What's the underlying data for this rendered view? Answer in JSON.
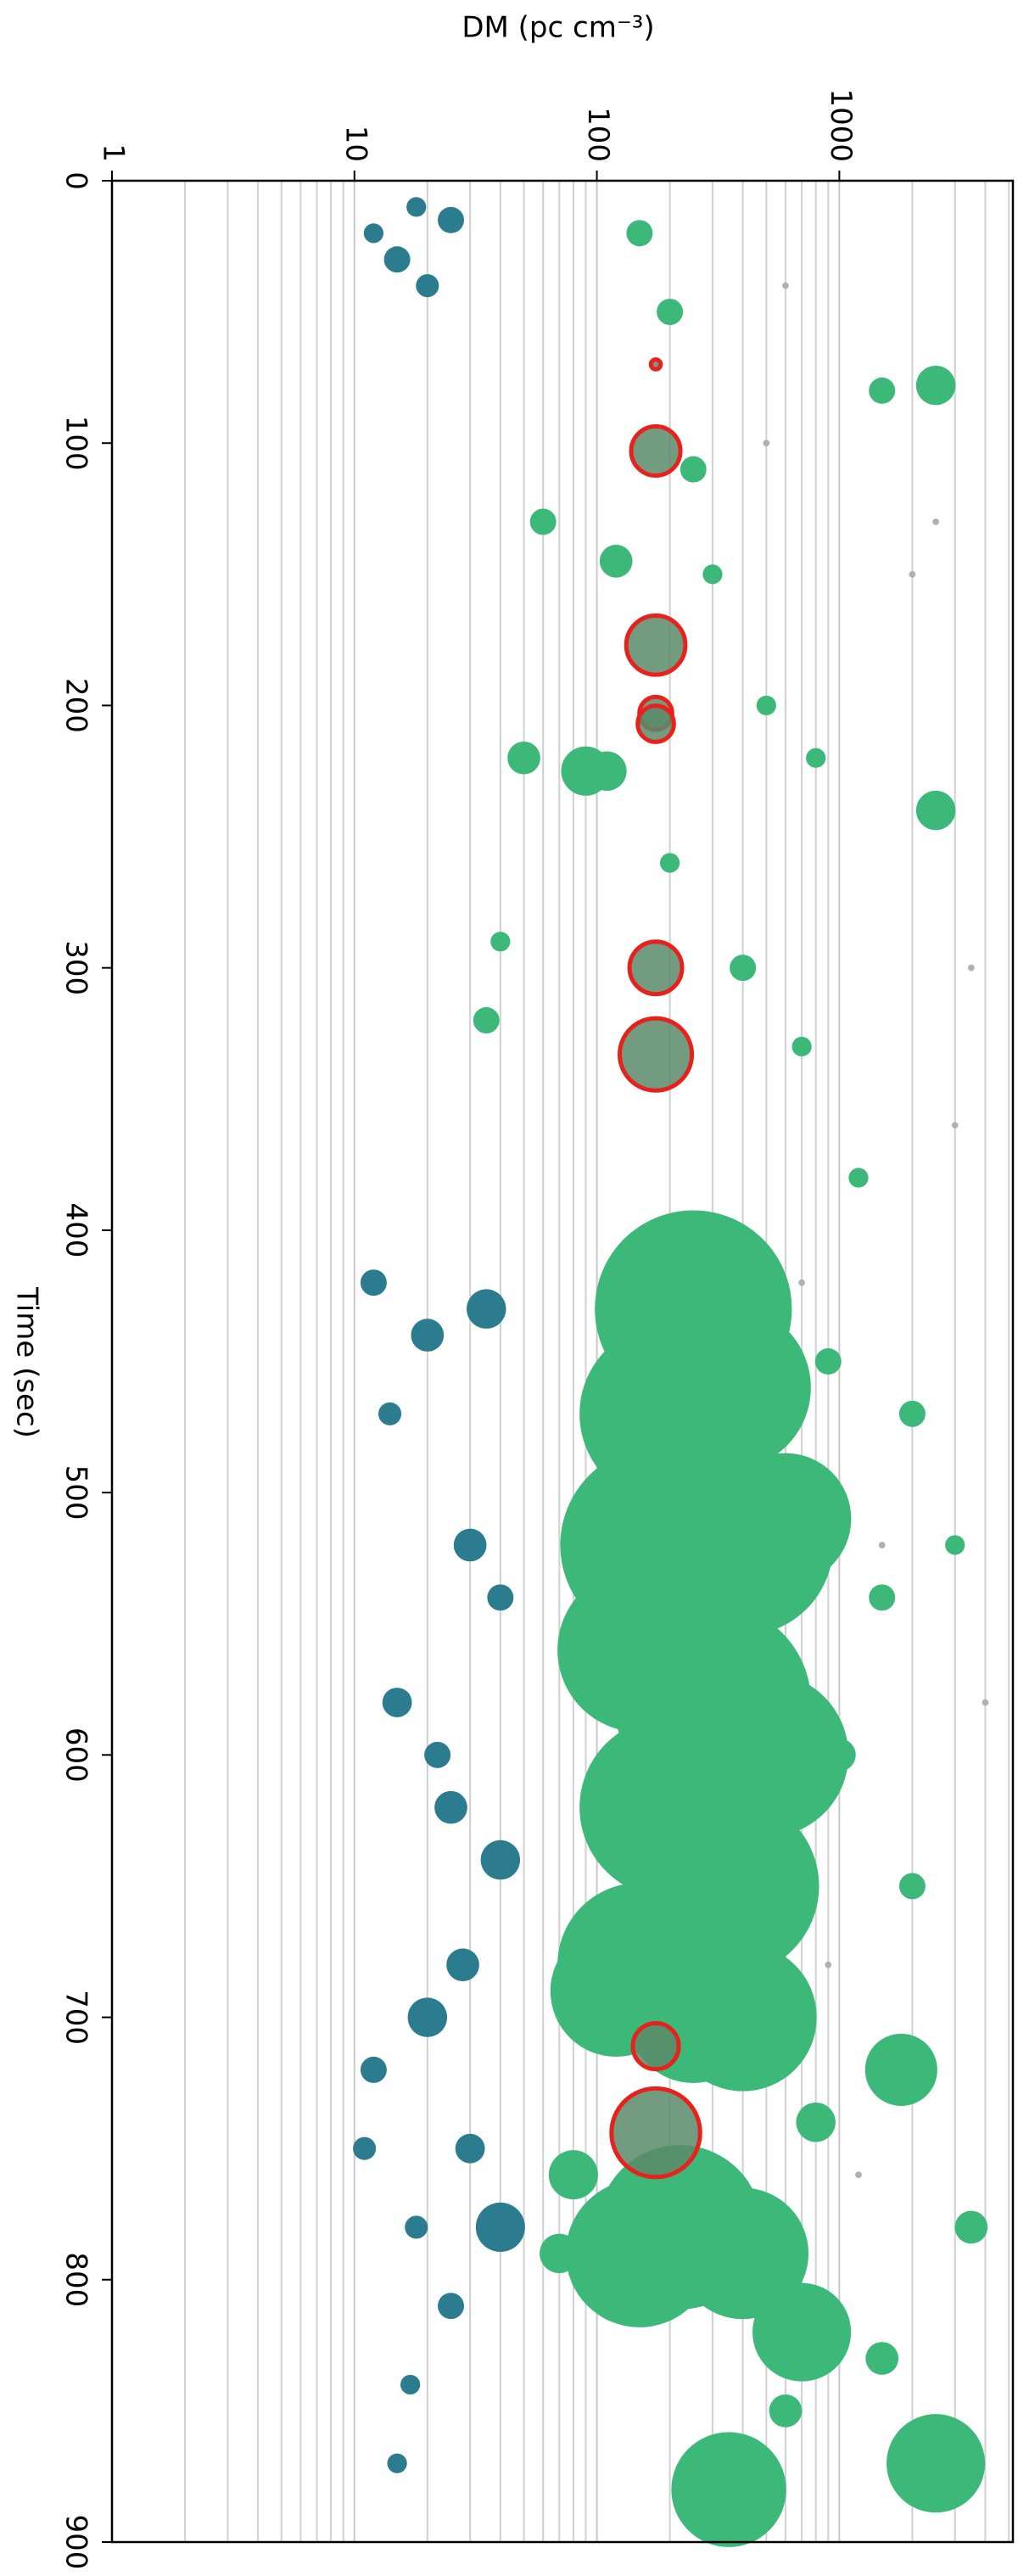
{
  "chart_data": {
    "type": "scatter",
    "xlabel": "DM (pc cm⁻³)",
    "ylabel": "Time (sec)",
    "xscale": "log",
    "xlim": [
      1,
      5200
    ],
    "ylim": [
      0,
      900
    ],
    "yinverted": true,
    "xticks": [
      1,
      10,
      100,
      1000
    ],
    "yticks": [
      0,
      100,
      200,
      300,
      400,
      500,
      600,
      700,
      800,
      900
    ],
    "grid": true,
    "minor_grid": true,
    "series": [
      {
        "color": "#b0b0b0",
        "x": [
          500,
          2000,
          3000,
          4000,
          1500,
          900,
          2500,
          600,
          3500,
          1200,
          700
        ],
        "y": [
          100,
          150,
          360,
          580,
          520,
          680,
          130,
          40,
          300,
          760,
          420
        ],
        "sizes": [
          2,
          2,
          2,
          2,
          2,
          2,
          2,
          2,
          2,
          2,
          2
        ]
      },
      {
        "color": "#2b7c8e",
        "x": [
          12,
          15,
          20,
          25,
          18,
          12,
          20,
          35,
          30,
          40,
          15,
          25,
          20,
          12,
          30,
          18,
          25,
          15,
          40,
          40,
          14,
          22,
          28,
          11,
          17
        ],
        "y": [
          20,
          30,
          40,
          15,
          10,
          420,
          440,
          430,
          520,
          540,
          580,
          620,
          700,
          720,
          750,
          780,
          810,
          870,
          780,
          640,
          470,
          600,
          680,
          750,
          840
        ],
        "sizes": [
          6,
          8,
          7,
          8,
          6,
          8,
          10,
          12,
          10,
          8,
          9,
          10,
          12,
          8,
          9,
          7,
          8,
          6,
          15,
          12,
          7,
          8,
          10,
          7,
          6
        ]
      },
      {
        "color": "#3cb878",
        "x": [
          250,
          200,
          350,
          180,
          400,
          600,
          150,
          300,
          500,
          200,
          350,
          150,
          400,
          250,
          120,
          220,
          150,
          400,
          700,
          350,
          2500,
          1800,
          2500,
          1500,
          2500,
          90,
          110,
          50,
          150,
          200,
          250,
          300,
          500,
          800,
          200,
          400,
          700,
          1200,
          900,
          2000,
          1500,
          3000,
          1000,
          2000,
          800,
          3500,
          600,
          1500,
          60,
          40,
          35,
          120,
          80,
          70
        ],
        "y": [
          430,
          470,
          460,
          520,
          520,
          510,
          560,
          580,
          600,
          620,
          650,
          680,
          700,
          700,
          690,
          780,
          790,
          790,
          820,
          880,
          870,
          720,
          240,
          80,
          78,
          225,
          225,
          220,
          20,
          50,
          110,
          150,
          200,
          220,
          260,
          300,
          330,
          380,
          450,
          470,
          540,
          520,
          600,
          650,
          740,
          780,
          850,
          830,
          130,
          290,
          320,
          145,
          760,
          790
        ],
        "sizes": [
          60,
          55,
          50,
          60,
          55,
          40,
          50,
          60,
          50,
          55,
          55,
          50,
          45,
          40,
          40,
          50,
          45,
          40,
          30,
          35,
          30,
          22,
          12,
          8,
          12,
          15,
          12,
          10,
          8,
          8,
          8,
          6,
          6,
          6,
          6,
          8,
          6,
          6,
          8,
          8,
          8,
          6,
          10,
          8,
          12,
          10,
          10,
          10,
          8,
          6,
          8,
          10,
          15,
          12
        ]
      },
      {
        "color": "#5a8a6a",
        "edgecolor": "#e8211d",
        "x": [
          175,
          175,
          175,
          175,
          175,
          175,
          175,
          175,
          175
        ],
        "y": [
          70,
          103,
          177,
          203,
          207,
          300,
          333,
          711,
          744
        ],
        "sizes": [
          3,
          15,
          18,
          10,
          11,
          16,
          22,
          14,
          27
        ]
      }
    ]
  }
}
